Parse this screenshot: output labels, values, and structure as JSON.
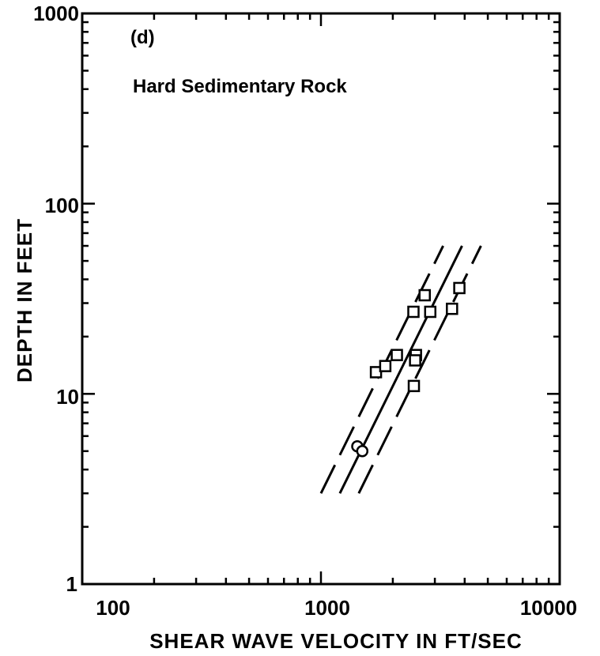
{
  "chart_data": {
    "type": "scatter",
    "panel_label": "(d)",
    "annotation": "Hard Sedimentary Rock",
    "xlabel": "SHEAR WAVE VELOCITY IN FT/SEC",
    "ylabel": "DEPTH IN FEET",
    "x_scale": "log",
    "y_scale": "log",
    "xlim": [
      100,
      10000
    ],
    "ylim": [
      1,
      1000
    ],
    "x_ticks": [
      {
        "value": 100,
        "label": "100"
      },
      {
        "value": 1000,
        "label": "1000"
      },
      {
        "value": 10000,
        "label": "10000"
      }
    ],
    "y_ticks": [
      {
        "value": 1,
        "label": "1"
      },
      {
        "value": 10,
        "label": "10"
      },
      {
        "value": 100,
        "label": "100"
      },
      {
        "value": 1000,
        "label": "1000"
      }
    ],
    "grid": false,
    "squares": [
      {
        "x": 1700,
        "y": 13
      },
      {
        "x": 1860,
        "y": 14
      },
      {
        "x": 2080,
        "y": 16
      },
      {
        "x": 2440,
        "y": 27
      },
      {
        "x": 2500,
        "y": 16
      },
      {
        "x": 2480,
        "y": 15
      },
      {
        "x": 2450,
        "y": 11
      },
      {
        "x": 2720,
        "y": 33
      },
      {
        "x": 2870,
        "y": 27
      },
      {
        "x": 3540,
        "y": 28
      },
      {
        "x": 3800,
        "y": 36
      }
    ],
    "circles": [
      {
        "x": 1420,
        "y": 5.3
      },
      {
        "x": 1490,
        "y": 5.0
      }
    ],
    "lines": [
      {
        "style": "solid",
        "from": [
          1200,
          3
        ],
        "to": [
          3900,
          60
        ]
      },
      {
        "style": "dashed",
        "from": [
          1000,
          3
        ],
        "to": [
          3250,
          60
        ]
      },
      {
        "style": "dashed",
        "from": [
          1440,
          3
        ],
        "to": [
          4680,
          60
        ]
      }
    ]
  }
}
